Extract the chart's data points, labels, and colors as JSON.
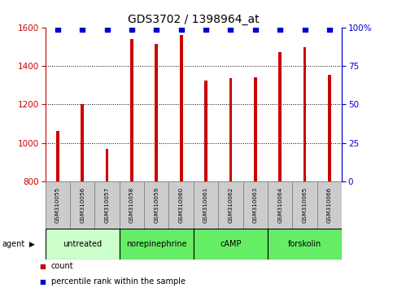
{
  "title": "GDS3702 / 1398964_at",
  "samples": [
    "GSM310055",
    "GSM310056",
    "GSM310057",
    "GSM310058",
    "GSM310059",
    "GSM310060",
    "GSM310061",
    "GSM310062",
    "GSM310063",
    "GSM310064",
    "GSM310065",
    "GSM310066"
  ],
  "counts": [
    1060,
    1200,
    970,
    1540,
    1515,
    1560,
    1325,
    1335,
    1340,
    1470,
    1495,
    1355
  ],
  "percentiles": [
    99,
    99,
    99,
    99,
    99,
    99,
    99,
    99,
    99,
    99,
    99,
    99
  ],
  "bar_color": "#cc0000",
  "dot_color": "#0000cc",
  "ylim_left": [
    800,
    1600
  ],
  "ylim_right": [
    0,
    100
  ],
  "yticks_left": [
    800,
    1000,
    1200,
    1400,
    1600
  ],
  "yticks_right": [
    0,
    25,
    50,
    75,
    100
  ],
  "grid_yticks": [
    1000,
    1200,
    1400
  ],
  "agent_label": "agent",
  "legend_count_label": "count",
  "legend_pct_label": "percentile rank within the sample",
  "bar_width": 0.12,
  "background_color": "#ffffff",
  "plot_bg": "#ffffff",
  "tick_label_color_left": "#cc0000",
  "tick_label_color_right": "#0000cc",
  "sample_bg_color": "#cccccc",
  "sample_border_color": "#888888",
  "agent_configs": [
    {
      "label": "untreated",
      "start": 0,
      "end": 3,
      "color": "#ccffcc"
    },
    {
      "label": "norepinephrine",
      "start": 3,
      "end": 6,
      "color": "#66ee66"
    },
    {
      "label": "cAMP",
      "start": 6,
      "end": 9,
      "color": "#66ee66"
    },
    {
      "label": "forskolin",
      "start": 9,
      "end": 12,
      "color": "#66ee66"
    }
  ]
}
